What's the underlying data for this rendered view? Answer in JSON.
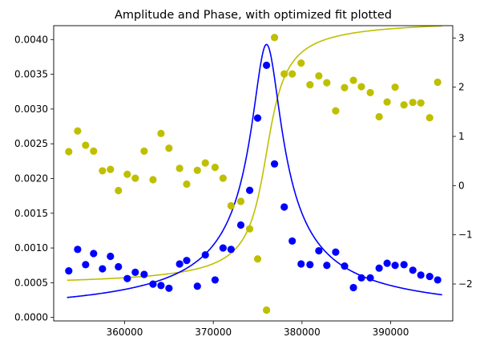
{
  "chart_data": {
    "type": "scatter+line",
    "title": "Amplitude and Phase, with optimized fit plotted",
    "xlabel": "",
    "ylabel_left": "",
    "ylabel_right": "",
    "x_range": [
      352000,
      397000
    ],
    "y_left_range": [
      -5e-05,
      0.0042
    ],
    "y_right_range": [
      -2.75,
      3.25
    ],
    "x_ticks": [
      360000,
      370000,
      380000,
      390000
    ],
    "y_left_ticks": [
      0.0,
      0.0005,
      0.001,
      0.0015,
      0.002,
      0.0025,
      0.003,
      0.0035,
      0.004
    ],
    "y_left_tick_labels": [
      "0.0000",
      "0.0005",
      "0.0010",
      "0.0015",
      "0.0020",
      "0.0025",
      "0.0030",
      "0.0035",
      "0.0040"
    ],
    "y_right_ticks": [
      -2,
      -1,
      0,
      1,
      2,
      3
    ],
    "colors": {
      "amplitude": "#0000ff",
      "phase": "#bfbf00"
    },
    "amplitude_points": [
      [
        353700,
        0.00067
      ],
      [
        354700,
        0.00098
      ],
      [
        355600,
        0.00076
      ],
      [
        356500,
        0.00092
      ],
      [
        357500,
        0.0007
      ],
      [
        358400,
        0.00088
      ],
      [
        359300,
        0.00073
      ],
      [
        360300,
        0.00056
      ],
      [
        361200,
        0.00065
      ],
      [
        362200,
        0.00062
      ],
      [
        363200,
        0.00048
      ],
      [
        364100,
        0.00046
      ],
      [
        365000,
        0.00042
      ],
      [
        366200,
        0.00077
      ],
      [
        367000,
        0.00082
      ],
      [
        368200,
        0.00045
      ],
      [
        369100,
        0.0009
      ],
      [
        370200,
        0.00054
      ],
      [
        371100,
        0.001
      ],
      [
        372000,
        0.00098
      ],
      [
        373100,
        0.00133
      ],
      [
        374100,
        0.00183
      ],
      [
        375000,
        0.00287
      ],
      [
        376000,
        0.00363
      ],
      [
        376900,
        0.00221
      ],
      [
        378000,
        0.00159
      ],
      [
        378900,
        0.0011
      ],
      [
        379900,
        0.00077
      ],
      [
        380900,
        0.00076
      ],
      [
        381900,
        0.00096
      ],
      [
        382800,
        0.00075
      ],
      [
        383800,
        0.00094
      ],
      [
        384800,
        0.00074
      ],
      [
        385800,
        0.00043
      ],
      [
        386700,
        0.00057
      ],
      [
        387700,
        0.00057
      ],
      [
        388700,
        0.00071
      ],
      [
        389600,
        0.00078
      ],
      [
        390500,
        0.00075
      ],
      [
        391500,
        0.00076
      ],
      [
        392500,
        0.00068
      ],
      [
        393400,
        0.00061
      ],
      [
        394400,
        0.00059
      ],
      [
        395300,
        0.00054
      ]
    ],
    "phase_points": [
      [
        353700,
        0.69
      ],
      [
        354700,
        1.11
      ],
      [
        355600,
        0.82
      ],
      [
        356500,
        0.7
      ],
      [
        357500,
        0.3
      ],
      [
        358400,
        0.33
      ],
      [
        359300,
        -0.1
      ],
      [
        360300,
        0.23
      ],
      [
        361200,
        0.15
      ],
      [
        362200,
        0.7
      ],
      [
        363200,
        0.12
      ],
      [
        364100,
        1.06
      ],
      [
        365000,
        0.76
      ],
      [
        366200,
        0.35
      ],
      [
        367000,
        0.03
      ],
      [
        368200,
        0.31
      ],
      [
        369100,
        0.46
      ],
      [
        370200,
        0.37
      ],
      [
        371100,
        0.15
      ],
      [
        372000,
        -0.41
      ],
      [
        373100,
        -0.32
      ],
      [
        374100,
        -0.88
      ],
      [
        375000,
        -1.49
      ],
      [
        376000,
        -2.53
      ],
      [
        376900,
        3.01
      ],
      [
        378000,
        2.27
      ],
      [
        378900,
        2.27
      ],
      [
        379900,
        2.49
      ],
      [
        380900,
        2.05
      ],
      [
        381900,
        2.23
      ],
      [
        382800,
        2.09
      ],
      [
        383800,
        1.52
      ],
      [
        384800,
        1.99
      ],
      [
        385800,
        2.14
      ],
      [
        386700,
        2.01
      ],
      [
        387700,
        1.89
      ],
      [
        388700,
        1.4
      ],
      [
        389600,
        1.7
      ],
      [
        390500,
        2.0
      ],
      [
        391500,
        1.64
      ],
      [
        392500,
        1.69
      ],
      [
        393400,
        1.68
      ],
      [
        394400,
        1.38
      ],
      [
        395300,
        2.1
      ]
    ],
    "fit_params": {
      "f0": 376000,
      "gamma": 1650,
      "amplitude_peak": 0.00393,
      "phase_offset": -2.05,
      "phase_span": 5.44
    }
  }
}
